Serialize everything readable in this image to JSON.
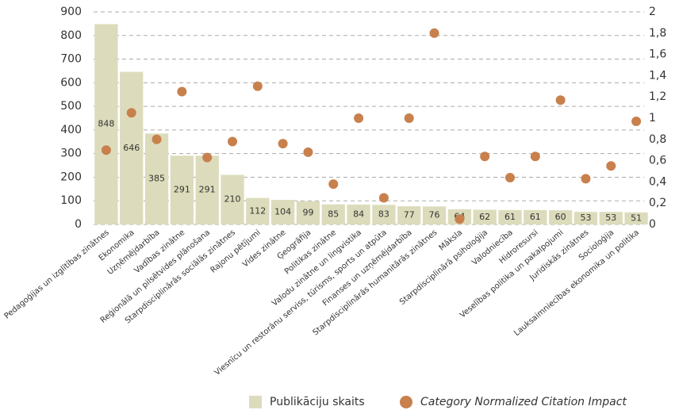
{
  "chart_data": {
    "type": "bar",
    "categories": [
      "Pedagoģijas un izglītības zinātnes",
      "Ekonomika",
      "Uzņēmējdarbība",
      "Vadības zinātne",
      "Reģionālā un pilsētvides plānošana",
      "Starpdisciplinārās sociālās zinātnes",
      "Rajonu pētījumi",
      "Vides zinātne",
      "Ģeogrāfija",
      "Politikas zinātne",
      "Valodu zinātne un lingvistika",
      "Viesnīcu un restorānu serviss, tūrisms, sports un atpūta",
      "Finanses un uzņēmējdarbība",
      "Starpdisciplinārās humanitārās zinātnes",
      "Māksla",
      "Starpdisciplinārā psiholoģija",
      "Valodniecība",
      "Hidroresursi",
      "Veselības politika un pakalpojumi",
      "Juridiskās zinātnes",
      "Socioloģija",
      "Lauksaimniecības ekonomika un politika"
    ],
    "series": [
      {
        "name": "Publikāciju skaits",
        "type": "bar",
        "color": "#dcdcbc",
        "values": [
          848,
          646,
          385,
          291,
          291,
          210,
          112,
          104,
          99,
          85,
          84,
          83,
          77,
          76,
          64,
          62,
          61,
          61,
          60,
          53,
          53,
          51
        ]
      },
      {
        "name": "Category Normalized Citation Impact",
        "type": "scatter",
        "axis": "y2",
        "color": "#c8804c",
        "values": [
          0.7,
          1.05,
          0.8,
          1.25,
          0.63,
          0.78,
          1.3,
          0.76,
          0.68,
          0.38,
          1.0,
          0.25,
          1.0,
          1.8,
          0.05,
          0.64,
          0.44,
          0.64,
          1.17,
          0.43,
          0.55,
          0.97
        ]
      }
    ],
    "ylim": [
      0,
      900
    ],
    "yticks": [
      0,
      100,
      200,
      300,
      400,
      500,
      600,
      700,
      800,
      900
    ],
    "y2lim": [
      0,
      2
    ],
    "y2ticks": [
      0,
      {
        "value": 0.2,
        "label": "0,2"
      },
      {
        "value": 0.4,
        "label": "0,4"
      },
      {
        "value": 0.6,
        "label": "0,6"
      },
      {
        "value": 0.8,
        "label": "0,8"
      },
      1,
      {
        "value": 1.2,
        "label": "1,2"
      },
      {
        "value": 1.4,
        "label": "1,4"
      },
      {
        "value": 1.6,
        "label": "1,6"
      },
      {
        "value": 1.8,
        "label": "1,8"
      },
      2
    ],
    "grid": true,
    "legend": "bottom"
  }
}
